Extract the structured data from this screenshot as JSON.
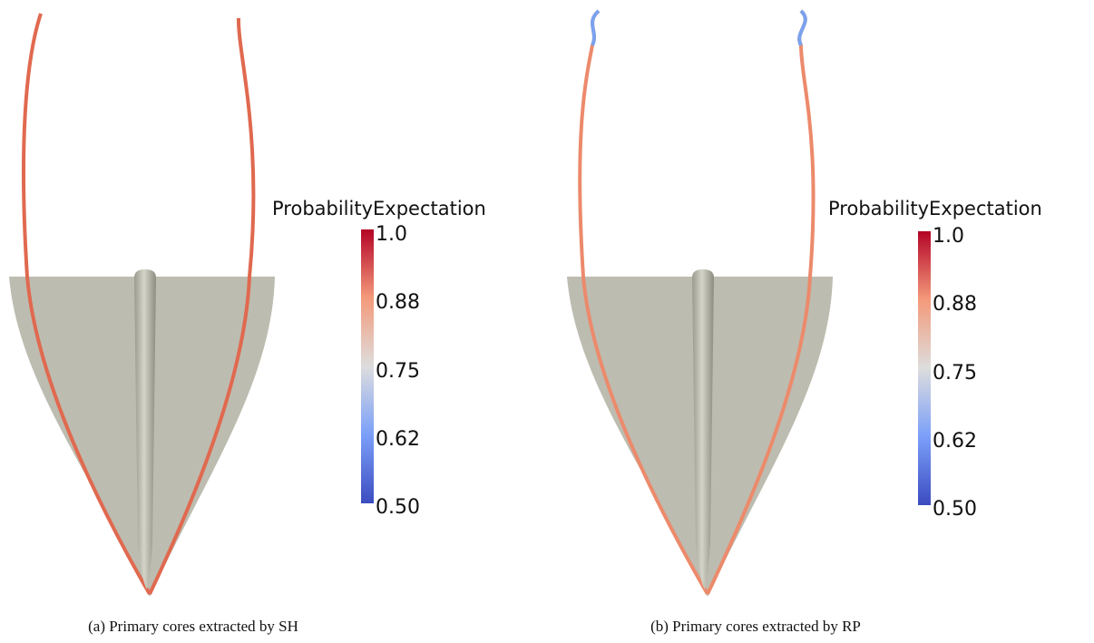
{
  "panels": [
    {
      "colorbar": {
        "title": "ProbabilityExpectation",
        "ticks": [
          "1.0",
          "0.88",
          "0.75",
          "0.62",
          "0.50"
        ]
      },
      "caption": "(a)  Primary cores extracted by SH"
    },
    {
      "colorbar": {
        "title": "ProbabilityExpectation",
        "ticks": [
          "1.0",
          "0.88",
          "0.75",
          "0.62",
          "0.50"
        ]
      },
      "caption": "(b)  Primary cores extracted by RP"
    }
  ]
}
